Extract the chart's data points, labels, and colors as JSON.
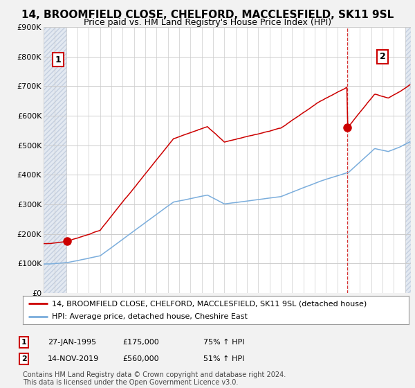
{
  "title": "14, BROOMFIELD CLOSE, CHELFORD, MACCLESFIELD, SK11 9SL",
  "subtitle": "Price paid vs. HM Land Registry's House Price Index (HPI)",
  "ylim": [
    0,
    900000
  ],
  "yticks": [
    0,
    100000,
    200000,
    300000,
    400000,
    500000,
    600000,
    700000,
    800000,
    900000
  ],
  "ytick_labels": [
    "£0",
    "£100K",
    "£200K",
    "£300K",
    "£400K",
    "£500K",
    "£600K",
    "£700K",
    "£800K",
    "£900K"
  ],
  "xlim_left": 1993,
  "xlim_right": 2025.5,
  "sale1_date": 1995.07,
  "sale1_price": 175000,
  "sale2_date": 2019.87,
  "sale2_price": 560000,
  "annotation1_date": "27-JAN-1995",
  "annotation1_price": "£175,000",
  "annotation1_hpi": "75% ↑ HPI",
  "annotation2_date": "14-NOV-2019",
  "annotation2_price": "£560,000",
  "annotation2_hpi": "51% ↑ HPI",
  "red_line_color": "#cc0000",
  "blue_line_color": "#7aaddc",
  "hatch_bg_color": "#d8e0ec",
  "hatch_edge_color": "#b8c4d8",
  "white_bg_color": "#ffffff",
  "fig_bg_color": "#f2f2f2",
  "legend_label_red": "14, BROOMFIELD CLOSE, CHELFORD, MACCLESFIELD, SK11 9SL (detached house)",
  "legend_label_blue": "HPI: Average price, detached house, Cheshire East",
  "footer": "Contains HM Land Registry data © Crown copyright and database right 2024.\nThis data is licensed under the Open Government Licence v3.0.",
  "title_fontsize": 11,
  "subtitle_fontsize": 9,
  "tick_fontsize": 8,
  "legend_fontsize": 8,
  "annot_fontsize": 8,
  "footer_fontsize": 7
}
